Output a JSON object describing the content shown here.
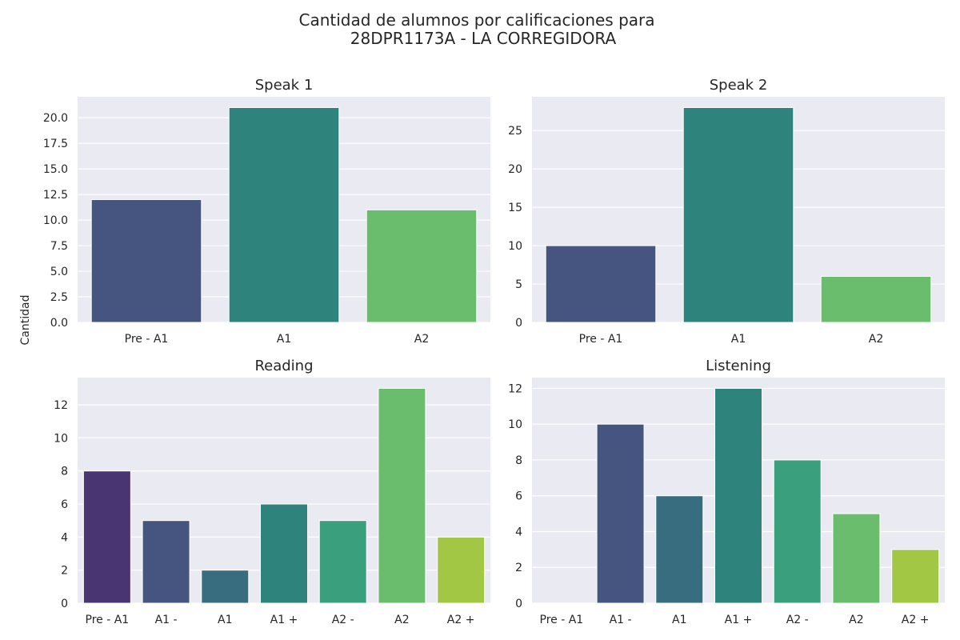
{
  "figure": {
    "title_line1": "Cantidad de alumnos por calificaciones para",
    "title_line2": "28DPR1173A - LA CORREGIDORA",
    "shared_ylabel": "Cantidad"
  },
  "colors": {
    "background": "#eaeaf2",
    "grid": "#ffffff",
    "text": "#262626"
  },
  "chart_data": [
    {
      "type": "bar",
      "title": "Speak 1",
      "categories": [
        "Pre - A1",
        "A1",
        "A2"
      ],
      "values": [
        12,
        21,
        11
      ],
      "colors": [
        "#46557f",
        "#2e837d",
        "#6abd6c"
      ],
      "ylim": [
        0,
        22.05
      ],
      "yticks": [
        0,
        2.5,
        5,
        7.5,
        10,
        12.5,
        15,
        17.5,
        20
      ],
      "ytick_labels": [
        "0.0",
        "2.5",
        "5.0",
        "7.5",
        "10.0",
        "12.5",
        "15.0",
        "17.5",
        "20.0"
      ],
      "grid": true
    },
    {
      "type": "bar",
      "title": "Speak 2",
      "categories": [
        "Pre - A1",
        "A1",
        "A2"
      ],
      "values": [
        10,
        28,
        6
      ],
      "colors": [
        "#46557f",
        "#2e837d",
        "#6abd6c"
      ],
      "ylim": [
        0,
        29.4
      ],
      "yticks": [
        0,
        5,
        10,
        15,
        20,
        25
      ],
      "ytick_labels": [
        "0",
        "5",
        "10",
        "15",
        "20",
        "25"
      ],
      "grid": true
    },
    {
      "type": "bar",
      "title": "Reading",
      "categories": [
        "Pre - A1",
        "A1 -",
        "A1",
        "A1 +",
        "A2 -",
        "A2",
        "A2 +"
      ],
      "values": [
        8,
        5,
        2,
        6,
        5,
        13,
        4
      ],
      "colors": [
        "#4a3573",
        "#46557f",
        "#386d80",
        "#2e837d",
        "#3a9f7c",
        "#6abd6c",
        "#a2c744"
      ],
      "ylim": [
        0,
        13.65
      ],
      "yticks": [
        0,
        2,
        4,
        6,
        8,
        10,
        12
      ],
      "ytick_labels": [
        "0",
        "2",
        "4",
        "6",
        "8",
        "10",
        "12"
      ],
      "grid": true
    },
    {
      "type": "bar",
      "title": "Listening",
      "categories": [
        "Pre - A1",
        "A1 -",
        "A1",
        "A1 +",
        "A2 -",
        "A2",
        "A2 +"
      ],
      "values": [
        0,
        10,
        6,
        12,
        8,
        5,
        3
      ],
      "colors": [
        "#4a3573",
        "#46557f",
        "#386d80",
        "#2e837d",
        "#3a9f7c",
        "#6abd6c",
        "#a2c744"
      ],
      "ylim": [
        0,
        12.6
      ],
      "yticks": [
        0,
        2,
        4,
        6,
        8,
        10,
        12
      ],
      "ytick_labels": [
        "0",
        "2",
        "4",
        "6",
        "8",
        "10",
        "12"
      ],
      "grid": true
    }
  ]
}
